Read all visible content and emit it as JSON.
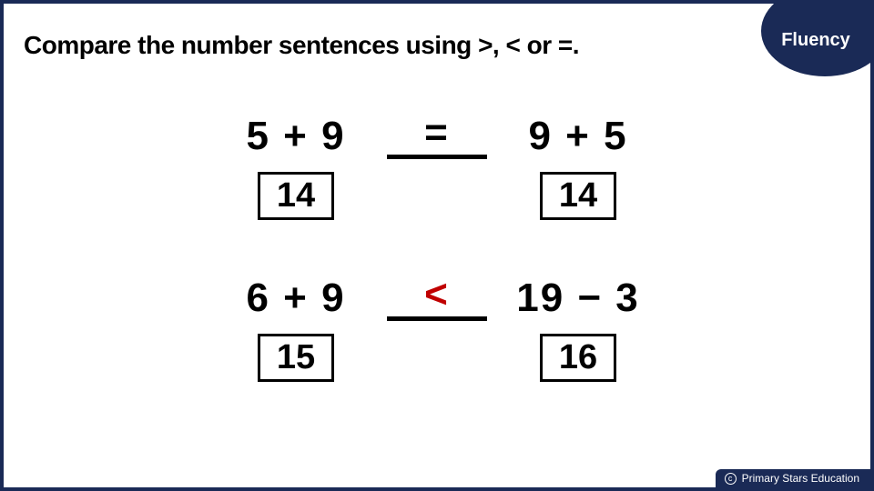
{
  "instruction": "Compare the number sentences using >, < or =.",
  "badge": {
    "label": "Fluency",
    "bg": "#1a2a56",
    "fg": "#ffffff"
  },
  "problems": [
    {
      "left_expr": "5 + 9",
      "symbol": "=",
      "symbol_color": "#000000",
      "right_expr": "9 + 5",
      "left_answer": "14",
      "right_answer": "14"
    },
    {
      "left_expr": "6 + 9",
      "symbol": "<",
      "symbol_color": "#c00000",
      "right_expr": "19 − 3",
      "left_answer": "15",
      "right_answer": "16"
    }
  ],
  "footer": {
    "copyright": "Primary Stars Education"
  },
  "style": {
    "border_color": "#1a2a56",
    "instruction_fontsize": 28,
    "expr_fontsize": 44,
    "answer_fontsize": 38,
    "answer_box_border": "#000000",
    "blank_underline_color": "#000000"
  }
}
